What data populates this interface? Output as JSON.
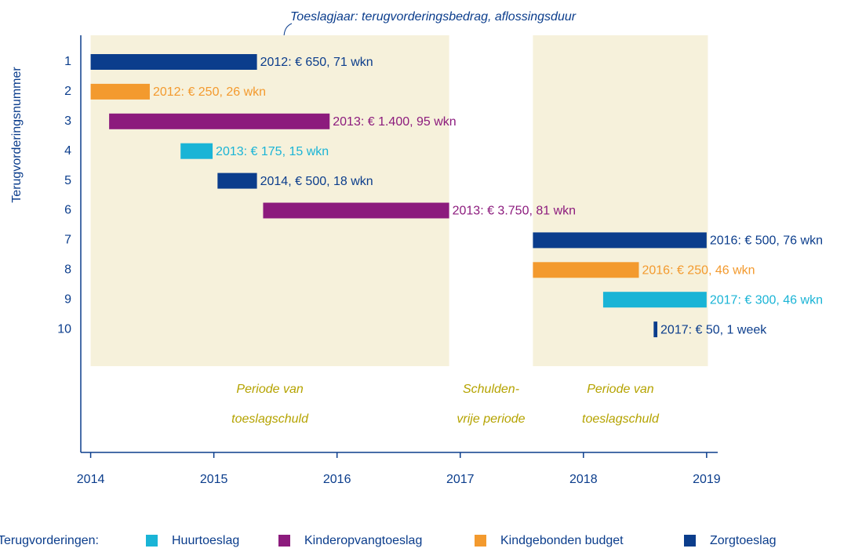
{
  "chart_data": {
    "type": "gantt",
    "annotation": "Toeslagjaar: terugvorderingsbedrag, aflossingsduur",
    "y_label": "Terugvorderingsnummer",
    "categories": [
      "1",
      "2",
      "3",
      "4",
      "5",
      "6",
      "7",
      "8",
      "9",
      "10"
    ],
    "bars": [
      {
        "start": 2014.0,
        "end": 2015.35,
        "series": 3,
        "label": "2012: € 650, 71 wkn"
      },
      {
        "start": 2014.0,
        "end": 2014.48,
        "series": 2,
        "label": "2012: € 250, 26 wkn"
      },
      {
        "start": 2014.15,
        "end": 2015.94,
        "series": 1,
        "label": "2013: € 1.400, 95 wkn"
      },
      {
        "start": 2014.73,
        "end": 2014.99,
        "series": 0,
        "label": "2013: € 175, 15 wkn"
      },
      {
        "start": 2015.03,
        "end": 2015.35,
        "series": 3,
        "label": "2014, € 500, 18 wkn"
      },
      {
        "start": 2015.4,
        "end": 2016.91,
        "series": 1,
        "label": "2013: € 3.750, 81 wkn"
      },
      {
        "start": 2017.59,
        "end": 2019.0,
        "series": 3,
        "label": "2016: € 500, 76 wkn"
      },
      {
        "start": 2017.59,
        "end": 2018.45,
        "series": 2,
        "label": "2016: € 250, 46 wkn"
      },
      {
        "start": 2018.16,
        "end": 2019.0,
        "series": 0,
        "label": "2017: € 300, 46 wkn"
      },
      {
        "start": 2018.57,
        "end": 2018.6,
        "series": 3,
        "label": "2017: € 50, 1 week"
      }
    ],
    "periods": [
      {
        "start": 2014.0,
        "end": 2016.91,
        "shaded": true,
        "lines": [
          "Periode van",
          "toeslagschuld"
        ]
      },
      {
        "start": 2016.91,
        "end": 2017.59,
        "shaded": false,
        "lines": [
          "Schulden-",
          "vrije periode"
        ]
      },
      {
        "start": 2017.59,
        "end": 2019.01,
        "shaded": true,
        "lines": [
          "Periode van",
          "toeslagschuld"
        ]
      }
    ],
    "legend_title": "Terugvorderingen:",
    "series": [
      {
        "name": "Huurtoeslag",
        "color": "#1ab4d6"
      },
      {
        "name": "Kinderopvangtoeslag",
        "color": "#8c1b7d"
      },
      {
        "name": "Kindgebonden budget",
        "color": "#f39a2e"
      },
      {
        "name": "Zorgtoeslag",
        "color": "#0b3d8c"
      }
    ],
    "xlim": [
      2013.92,
      2019.09
    ],
    "xticks": [
      2014,
      2015,
      2016,
      2017,
      2018,
      2019
    ],
    "period_color": "#f6f1db",
    "period_text_color": "#b5a300"
  }
}
